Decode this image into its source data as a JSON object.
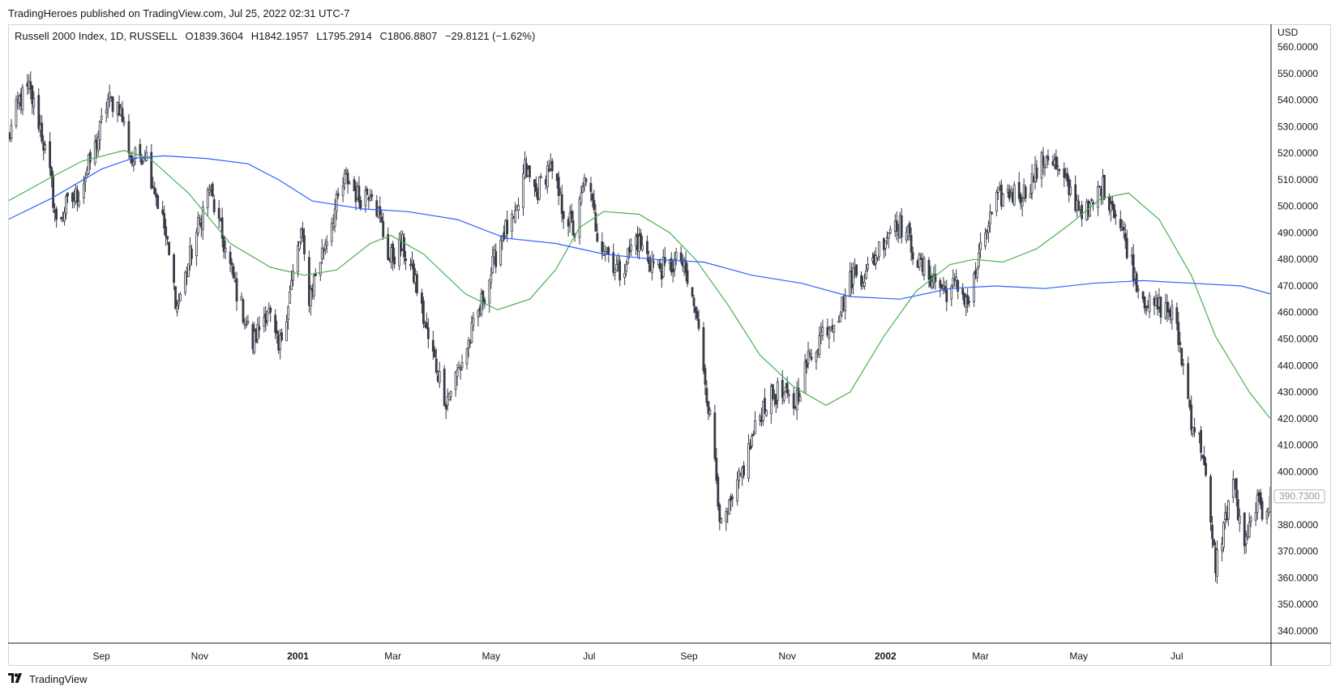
{
  "header": {
    "published": "TradingHeroes published on TradingView.com, Jul 25, 2022 02:31 UTC-7"
  },
  "legend": {
    "symbol": "Russell 2000 Index, 1D, RUSSELL",
    "open": "O1839.3604",
    "high": "H1842.1957",
    "low": "L1795.2914",
    "close": "C1806.8807",
    "change": "−29.8121 (−1.62%)"
  },
  "footer": {
    "brand": "TradingView",
    "logo_icon": "tradingview-logo-icon"
  },
  "chart_data": {
    "type": "candlestick",
    "currency": "USD",
    "ylim": [
      335,
      565
    ],
    "yticks": [
      "340.0000",
      "350.0000",
      "360.0000",
      "370.0000",
      "380.0000",
      "390.0000",
      "400.0000",
      "410.0000",
      "420.0000",
      "430.0000",
      "440.0000",
      "450.0000",
      "460.0000",
      "470.0000",
      "480.0000",
      "490.0000",
      "500.0000",
      "510.0000",
      "520.0000",
      "530.0000",
      "540.0000",
      "550.0000",
      "560.0000"
    ],
    "x_start": "2000-07-05",
    "x_end": "2002-08-28",
    "xticks": [
      {
        "label": "Sep",
        "date": "2000-09-01",
        "bold": false
      },
      {
        "label": "Nov",
        "date": "2000-11-01",
        "bold": false
      },
      {
        "label": "2001",
        "date": "2001-01-01",
        "bold": true
      },
      {
        "label": "Mar",
        "date": "2001-03-01",
        "bold": false
      },
      {
        "label": "May",
        "date": "2001-05-01",
        "bold": false
      },
      {
        "label": "Jul",
        "date": "2001-07-01",
        "bold": false
      },
      {
        "label": "Sep",
        "date": "2001-09-01",
        "bold": false
      },
      {
        "label": "Nov",
        "date": "2001-11-01",
        "bold": false
      },
      {
        "label": "2002",
        "date": "2002-01-01",
        "bold": true
      },
      {
        "label": "Mar",
        "date": "2002-03-01",
        "bold": false
      },
      {
        "label": "May",
        "date": "2002-05-01",
        "bold": false
      },
      {
        "label": "Jul",
        "date": "2002-07-01",
        "bold": false
      }
    ],
    "last_price": 390.73,
    "last_price_label": "390.7300",
    "price_path": [
      {
        "date": "2000-07-05",
        "close": 525
      },
      {
        "date": "2000-07-12",
        "close": 540
      },
      {
        "date": "2000-07-18",
        "close": 544
      },
      {
        "date": "2000-07-25",
        "close": 530
      },
      {
        "date": "2000-08-01",
        "close": 508
      },
      {
        "date": "2000-08-04",
        "close": 493
      },
      {
        "date": "2000-08-10",
        "close": 500
      },
      {
        "date": "2000-08-18",
        "close": 505
      },
      {
        "date": "2000-08-28",
        "close": 522
      },
      {
        "date": "2000-09-05",
        "close": 540
      },
      {
        "date": "2000-09-12",
        "close": 538
      },
      {
        "date": "2000-09-20",
        "close": 517
      },
      {
        "date": "2000-09-28",
        "close": 521
      },
      {
        "date": "2000-10-10",
        "close": 492
      },
      {
        "date": "2000-10-18",
        "close": 462
      },
      {
        "date": "2000-10-30",
        "close": 490
      },
      {
        "date": "2000-11-07",
        "close": 507
      },
      {
        "date": "2000-11-15",
        "close": 488
      },
      {
        "date": "2000-11-24",
        "close": 468
      },
      {
        "date": "2000-12-04",
        "close": 448
      },
      {
        "date": "2000-12-13",
        "close": 462
      },
      {
        "date": "2000-12-20",
        "close": 445
      },
      {
        "date": "2001-01-03",
        "close": 490
      },
      {
        "date": "2001-01-08",
        "close": 466
      },
      {
        "date": "2001-01-22",
        "close": 495
      },
      {
        "date": "2001-01-31",
        "close": 511
      },
      {
        "date": "2001-02-08",
        "close": 503
      },
      {
        "date": "2001-02-16",
        "close": 507
      },
      {
        "date": "2001-02-27",
        "close": 480
      },
      {
        "date": "2001-03-07",
        "close": 485
      },
      {
        "date": "2001-03-15",
        "close": 472
      },
      {
        "date": "2001-03-22",
        "close": 452
      },
      {
        "date": "2001-04-03",
        "close": 427
      },
      {
        "date": "2001-04-12",
        "close": 440
      },
      {
        "date": "2001-04-20",
        "close": 454
      },
      {
        "date": "2001-05-01",
        "close": 475
      },
      {
        "date": "2001-05-08",
        "close": 490
      },
      {
        "date": "2001-05-16",
        "close": 494
      },
      {
        "date": "2001-05-22",
        "close": 514
      },
      {
        "date": "2001-05-29",
        "close": 505
      },
      {
        "date": "2001-06-06",
        "close": 515
      },
      {
        "date": "2001-06-14",
        "close": 500
      },
      {
        "date": "2001-06-22",
        "close": 490
      },
      {
        "date": "2001-06-29",
        "close": 512
      },
      {
        "date": "2001-07-06",
        "close": 490
      },
      {
        "date": "2001-07-13",
        "close": 482
      },
      {
        "date": "2001-07-20",
        "close": 475
      },
      {
        "date": "2001-07-30",
        "close": 488
      },
      {
        "date": "2001-08-08",
        "close": 479
      },
      {
        "date": "2001-08-17",
        "close": 476
      },
      {
        "date": "2001-08-27",
        "close": 480
      },
      {
        "date": "2001-09-05",
        "close": 460
      },
      {
        "date": "2001-09-10",
        "close": 440
      },
      {
        "date": "2001-09-17",
        "close": 405
      },
      {
        "date": "2001-09-21",
        "close": 378
      },
      {
        "date": "2001-09-28",
        "close": 388
      },
      {
        "date": "2001-10-08",
        "close": 408
      },
      {
        "date": "2001-10-17",
        "close": 425
      },
      {
        "date": "2001-10-26",
        "close": 430
      },
      {
        "date": "2001-11-05",
        "close": 425
      },
      {
        "date": "2001-11-14",
        "close": 442
      },
      {
        "date": "2001-11-23",
        "close": 453
      },
      {
        "date": "2001-12-04",
        "close": 461
      },
      {
        "date": "2001-12-12",
        "close": 475
      },
      {
        "date": "2001-12-20",
        "close": 474
      },
      {
        "date": "2001-12-31",
        "close": 488
      },
      {
        "date": "2002-01-07",
        "close": 495
      },
      {
        "date": "2002-01-14",
        "close": 490
      },
      {
        "date": "2002-01-22",
        "close": 478
      },
      {
        "date": "2002-01-30",
        "close": 473
      },
      {
        "date": "2002-02-07",
        "close": 468
      },
      {
        "date": "2002-02-14",
        "close": 470
      },
      {
        "date": "2002-02-22",
        "close": 464
      },
      {
        "date": "2002-03-04",
        "close": 490
      },
      {
        "date": "2002-03-12",
        "close": 503
      },
      {
        "date": "2002-03-20",
        "close": 505
      },
      {
        "date": "2002-03-28",
        "close": 505
      },
      {
        "date": "2002-04-05",
        "close": 513
      },
      {
        "date": "2002-04-12",
        "close": 520
      },
      {
        "date": "2002-04-19",
        "close": 512
      },
      {
        "date": "2002-04-29",
        "close": 502
      },
      {
        "date": "2002-05-07",
        "close": 497
      },
      {
        "date": "2002-05-15",
        "close": 508
      },
      {
        "date": "2002-05-22",
        "close": 501
      },
      {
        "date": "2002-05-31",
        "close": 485
      },
      {
        "date": "2002-06-07",
        "close": 470
      },
      {
        "date": "2002-06-14",
        "close": 462
      },
      {
        "date": "2002-06-21",
        "close": 462
      },
      {
        "date": "2002-06-28",
        "close": 460
      },
      {
        "date": "2002-07-03",
        "close": 447
      },
      {
        "date": "2002-07-10",
        "close": 420
      },
      {
        "date": "2002-07-17",
        "close": 408
      },
      {
        "date": "2002-07-22",
        "close": 378
      },
      {
        "date": "2002-07-25",
        "close": 365
      },
      {
        "date": "2002-07-31",
        "close": 382
      },
      {
        "date": "2002-08-05",
        "close": 398
      },
      {
        "date": "2002-08-09",
        "close": 380
      },
      {
        "date": "2002-08-13",
        "close": 372
      },
      {
        "date": "2002-08-19",
        "close": 389
      },
      {
        "date": "2002-08-23",
        "close": 384
      },
      {
        "date": "2002-08-28",
        "close": 390.73
      }
    ],
    "series": [
      {
        "color": "#4caf50",
        "points": [
          {
            "date": "2000-07-05",
            "value": 502
          },
          {
            "date": "2000-08-01",
            "value": 511
          },
          {
            "date": "2000-08-20",
            "value": 517
          },
          {
            "date": "2000-09-15",
            "value": 521
          },
          {
            "date": "2000-10-01",
            "value": 518
          },
          {
            "date": "2000-10-25",
            "value": 505
          },
          {
            "date": "2000-11-20",
            "value": 486
          },
          {
            "date": "2000-12-15",
            "value": 477
          },
          {
            "date": "2001-01-05",
            "value": 474
          },
          {
            "date": "2001-01-25",
            "value": 476
          },
          {
            "date": "2001-02-15",
            "value": 486
          },
          {
            "date": "2001-02-28",
            "value": 489
          },
          {
            "date": "2001-03-20",
            "value": 482
          },
          {
            "date": "2001-04-15",
            "value": 467
          },
          {
            "date": "2001-05-05",
            "value": 461
          },
          {
            "date": "2001-05-25",
            "value": 465
          },
          {
            "date": "2001-06-10",
            "value": 476
          },
          {
            "date": "2001-06-25",
            "value": 492
          },
          {
            "date": "2001-07-10",
            "value": 498
          },
          {
            "date": "2001-08-01",
            "value": 497
          },
          {
            "date": "2001-08-20",
            "value": 490
          },
          {
            "date": "2001-09-05",
            "value": 480
          },
          {
            "date": "2001-09-25",
            "value": 463
          },
          {
            "date": "2001-10-15",
            "value": 444
          },
          {
            "date": "2001-11-05",
            "value": 432
          },
          {
            "date": "2001-11-25",
            "value": 425
          },
          {
            "date": "2001-12-10",
            "value": 430
          },
          {
            "date": "2001-12-31",
            "value": 451
          },
          {
            "date": "2002-01-20",
            "value": 468
          },
          {
            "date": "2002-02-10",
            "value": 478
          },
          {
            "date": "2002-02-25",
            "value": 480
          },
          {
            "date": "2002-03-15",
            "value": 479
          },
          {
            "date": "2002-04-05",
            "value": 484
          },
          {
            "date": "2002-04-25",
            "value": 493
          },
          {
            "date": "2002-05-15",
            "value": 503
          },
          {
            "date": "2002-06-01",
            "value": 505
          },
          {
            "date": "2002-06-20",
            "value": 495
          },
          {
            "date": "2002-07-10",
            "value": 474
          },
          {
            "date": "2002-07-25",
            "value": 451
          },
          {
            "date": "2002-08-15",
            "value": 430
          },
          {
            "date": "2002-08-28",
            "value": 420
          }
        ]
      },
      {
        "color": "#2962ff",
        "points": [
          {
            "date": "2000-07-05",
            "value": 495
          },
          {
            "date": "2000-08-01",
            "value": 503
          },
          {
            "date": "2000-09-01",
            "value": 514
          },
          {
            "date": "2000-09-20",
            "value": 518
          },
          {
            "date": "2000-10-10",
            "value": 519
          },
          {
            "date": "2000-11-05",
            "value": 518
          },
          {
            "date": "2000-12-01",
            "value": 516
          },
          {
            "date": "2000-12-20",
            "value": 510
          },
          {
            "date": "2001-01-10",
            "value": 502
          },
          {
            "date": "2001-02-10",
            "value": 499
          },
          {
            "date": "2001-03-10",
            "value": 498
          },
          {
            "date": "2001-04-10",
            "value": 495
          },
          {
            "date": "2001-05-10",
            "value": 488
          },
          {
            "date": "2001-06-10",
            "value": 486
          },
          {
            "date": "2001-07-10",
            "value": 482
          },
          {
            "date": "2001-08-10",
            "value": 480
          },
          {
            "date": "2001-09-10",
            "value": 479
          },
          {
            "date": "2001-10-10",
            "value": 474
          },
          {
            "date": "2001-11-10",
            "value": 471
          },
          {
            "date": "2001-12-10",
            "value": 466
          },
          {
            "date": "2002-01-10",
            "value": 465
          },
          {
            "date": "2002-02-10",
            "value": 469
          },
          {
            "date": "2002-03-10",
            "value": 470
          },
          {
            "date": "2002-04-10",
            "value": 469
          },
          {
            "date": "2002-05-10",
            "value": 471
          },
          {
            "date": "2002-06-10",
            "value": 472
          },
          {
            "date": "2002-07-10",
            "value": 471
          },
          {
            "date": "2002-08-10",
            "value": 470
          },
          {
            "date": "2002-08-28",
            "value": 467
          }
        ]
      }
    ],
    "grid": false,
    "candle_colors": {
      "up": "#ffffff",
      "down": "#363a45",
      "wick": "#363a45"
    }
  }
}
